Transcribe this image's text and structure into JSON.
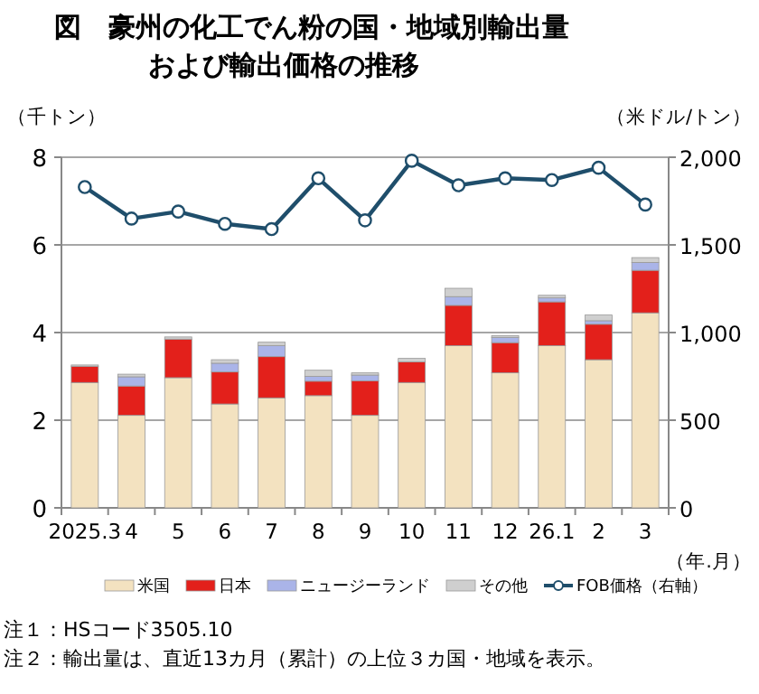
{
  "chart_data": {
    "type": "bar",
    "stacked": true,
    "title": "図　豪州の化工でん粉の国・地域別輸出量",
    "subtitle": "および輸出価格の推移",
    "ylabel": "（千トン）",
    "y2label": "（米ドル/トン）",
    "xlabel": "（年.月）",
    "categories": [
      "2025.3",
      "4",
      "5",
      "6",
      "7",
      "8",
      "9",
      "10",
      "11",
      "12",
      "26.1",
      "2",
      "3"
    ],
    "series": [
      {
        "name": "米国",
        "color": "#f3e2c0",
        "values": [
          2.86,
          2.11,
          2.97,
          2.37,
          2.51,
          2.56,
          2.11,
          2.86,
          3.7,
          3.08,
          3.7,
          3.38,
          4.45
        ]
      },
      {
        "name": "日本",
        "color": "#e3201b",
        "values": [
          0.37,
          0.67,
          0.88,
          0.73,
          0.94,
          0.33,
          0.79,
          0.47,
          0.92,
          0.69,
          1.0,
          0.81,
          0.97
        ]
      },
      {
        "name": "ニュージーランド",
        "color": "#aab4e8",
        "values": [
          0,
          0.21,
          0,
          0.2,
          0.25,
          0.11,
          0.13,
          0,
          0.2,
          0.12,
          0.09,
          0.08,
          0.18
        ]
      },
      {
        "name": "その他",
        "color": "#cfcfcf",
        "values": [
          0.03,
          0.06,
          0.05,
          0.08,
          0.08,
          0.14,
          0.05,
          0.08,
          0.19,
          0.04,
          0.06,
          0.13,
          0.11
        ]
      },
      {
        "name": "FOB価格（右軸）",
        "type": "line",
        "axis": "y2",
        "marker": "circle",
        "color": "#1f4e6b",
        "values": [
          1830,
          1650,
          1690,
          1620,
          1590,
          1880,
          1640,
          1980,
          1840,
          1880,
          1870,
          1940,
          1730
        ]
      }
    ],
    "ylim": [
      0,
      8
    ],
    "yticks": [
      0,
      2,
      4,
      6,
      8
    ],
    "y2lim": [
      0,
      2000
    ],
    "y2ticks": [
      {
        "value": 0,
        "label": "0"
      },
      {
        "value": 500,
        "label": "500"
      },
      {
        "value": 1000,
        "label": "1,000"
      },
      {
        "value": 1500,
        "label": "1,500"
      },
      {
        "value": 2000,
        "label": "2,000"
      }
    ],
    "grid": "y",
    "legend": "bottom",
    "annotations": [
      "注１：HSコード3505.10",
      "注２：輸出量は、直近13カ月（累計）の上位３カ国・地域を表示。"
    ]
  }
}
